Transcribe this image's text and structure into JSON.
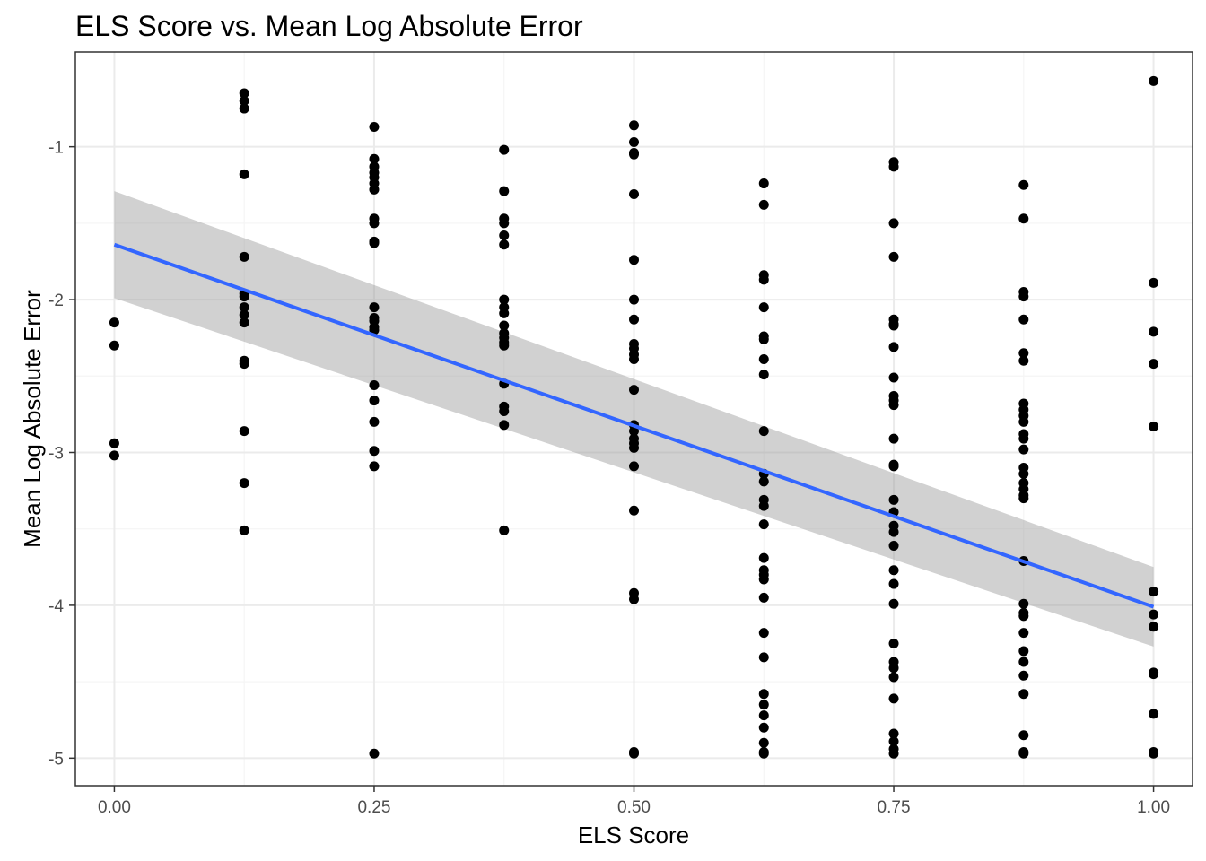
{
  "chart_data": {
    "type": "scatter",
    "title": "ELS Score vs. Mean Log Absolute Error",
    "xlabel": "ELS Score",
    "ylabel": "Mean Log Absolute Error",
    "xlim": [
      -0.0375,
      1.0375
    ],
    "ylim": [
      -5.18,
      -0.38
    ],
    "x_ticks": [
      0,
      0.25,
      0.5,
      0.75,
      1
    ],
    "x_tick_labels": [
      "0.00",
      "0.25",
      "0.50",
      "0.75",
      "1.00"
    ],
    "y_ticks": [
      -5,
      -4,
      -3,
      -2,
      -1
    ],
    "y_tick_labels": [
      "-5",
      "-4",
      "-3",
      "-2",
      "-1"
    ],
    "grid": true,
    "legend": "none",
    "colors": {
      "points": "#000000",
      "fit_line": "#3366ff",
      "ribbon": "#999999",
      "grid_major": "#ebebeb",
      "grid_minor": "#f5f5f5",
      "panel_border": "#333333"
    },
    "fit": {
      "method": "linear",
      "x": [
        0,
        1
      ],
      "y": [
        -1.64,
        -4.01
      ],
      "ci_lower": [
        -1.99,
        -4.27
      ],
      "ci_upper": [
        -1.29,
        -3.75
      ]
    },
    "points": [
      [
        0,
        -2.15
      ],
      [
        0,
        -2.3
      ],
      [
        0,
        -2.94
      ],
      [
        0,
        -3.02
      ],
      [
        0.125,
        -0.65
      ],
      [
        0.125,
        -0.7
      ],
      [
        0.125,
        -0.75
      ],
      [
        0.125,
        -1.18
      ],
      [
        0.125,
        -1.72
      ],
      [
        0.125,
        -1.96
      ],
      [
        0.125,
        -1.98
      ],
      [
        0.125,
        -2.05
      ],
      [
        0.125,
        -2.1
      ],
      [
        0.125,
        -2.15
      ],
      [
        0.125,
        -2.4
      ],
      [
        0.125,
        -2.42
      ],
      [
        0.125,
        -2.86
      ],
      [
        0.125,
        -3.2
      ],
      [
        0.125,
        -3.51
      ],
      [
        0.25,
        -0.87
      ],
      [
        0.25,
        -1.08
      ],
      [
        0.25,
        -1.13
      ],
      [
        0.25,
        -1.17
      ],
      [
        0.25,
        -1.2
      ],
      [
        0.25,
        -1.24
      ],
      [
        0.25,
        -1.28
      ],
      [
        0.25,
        -1.47
      ],
      [
        0.25,
        -1.5
      ],
      [
        0.25,
        -1.62
      ],
      [
        0.25,
        -1.63
      ],
      [
        0.25,
        -2.05
      ],
      [
        0.25,
        -2.12
      ],
      [
        0.25,
        -2.14
      ],
      [
        0.25,
        -2.18
      ],
      [
        0.25,
        -2.2
      ],
      [
        0.25,
        -2.56
      ],
      [
        0.25,
        -2.66
      ],
      [
        0.25,
        -2.8
      ],
      [
        0.25,
        -2.99
      ],
      [
        0.25,
        -3.09
      ],
      [
        0.25,
        -4.97
      ],
      [
        0.375,
        -1.02
      ],
      [
        0.375,
        -1.29
      ],
      [
        0.375,
        -1.47
      ],
      [
        0.375,
        -1.5
      ],
      [
        0.375,
        -1.58
      ],
      [
        0.375,
        -1.64
      ],
      [
        0.375,
        -2.0
      ],
      [
        0.375,
        -2.05
      ],
      [
        0.375,
        -2.09
      ],
      [
        0.375,
        -2.17
      ],
      [
        0.375,
        -2.22
      ],
      [
        0.375,
        -2.25
      ],
      [
        0.375,
        -2.28
      ],
      [
        0.375,
        -2.3
      ],
      [
        0.375,
        -2.55
      ],
      [
        0.375,
        -2.7
      ],
      [
        0.375,
        -2.73
      ],
      [
        0.375,
        -2.82
      ],
      [
        0.375,
        -3.51
      ],
      [
        0.5,
        -0.86
      ],
      [
        0.5,
        -0.97
      ],
      [
        0.5,
        -1.04
      ],
      [
        0.5,
        -1.05
      ],
      [
        0.5,
        -1.31
      ],
      [
        0.5,
        -1.74
      ],
      [
        0.5,
        -2.0
      ],
      [
        0.5,
        -2.13
      ],
      [
        0.5,
        -2.29
      ],
      [
        0.5,
        -2.32
      ],
      [
        0.5,
        -2.36
      ],
      [
        0.5,
        -2.39
      ],
      [
        0.5,
        -2.59
      ],
      [
        0.5,
        -2.82
      ],
      [
        0.5,
        -2.86
      ],
      [
        0.5,
        -2.91
      ],
      [
        0.5,
        -2.94
      ],
      [
        0.5,
        -2.97
      ],
      [
        0.5,
        -3.09
      ],
      [
        0.5,
        -3.38
      ],
      [
        0.5,
        -3.92
      ],
      [
        0.5,
        -3.96
      ],
      [
        0.5,
        -4.96
      ],
      [
        0.5,
        -4.97
      ],
      [
        0.625,
        -1.24
      ],
      [
        0.625,
        -1.38
      ],
      [
        0.625,
        -1.84
      ],
      [
        0.625,
        -1.87
      ],
      [
        0.625,
        -2.05
      ],
      [
        0.625,
        -2.24
      ],
      [
        0.625,
        -2.26
      ],
      [
        0.625,
        -2.39
      ],
      [
        0.625,
        -2.49
      ],
      [
        0.625,
        -2.86
      ],
      [
        0.625,
        -3.14
      ],
      [
        0.625,
        -3.19
      ],
      [
        0.625,
        -3.31
      ],
      [
        0.625,
        -3.35
      ],
      [
        0.625,
        -3.47
      ],
      [
        0.625,
        -3.69
      ],
      [
        0.625,
        -3.77
      ],
      [
        0.625,
        -3.8
      ],
      [
        0.625,
        -3.83
      ],
      [
        0.625,
        -3.95
      ],
      [
        0.625,
        -4.18
      ],
      [
        0.625,
        -4.34
      ],
      [
        0.625,
        -4.58
      ],
      [
        0.625,
        -4.65
      ],
      [
        0.625,
        -4.72
      ],
      [
        0.625,
        -4.8
      ],
      [
        0.625,
        -4.9
      ],
      [
        0.625,
        -4.96
      ],
      [
        0.625,
        -4.97
      ],
      [
        0.75,
        -1.1
      ],
      [
        0.75,
        -1.13
      ],
      [
        0.75,
        -1.5
      ],
      [
        0.75,
        -1.72
      ],
      [
        0.75,
        -2.13
      ],
      [
        0.75,
        -2.16
      ],
      [
        0.75,
        -2.17
      ],
      [
        0.75,
        -2.31
      ],
      [
        0.75,
        -2.51
      ],
      [
        0.75,
        -2.63
      ],
      [
        0.75,
        -2.66
      ],
      [
        0.75,
        -2.69
      ],
      [
        0.75,
        -2.91
      ],
      [
        0.75,
        -3.08
      ],
      [
        0.75,
        -3.09
      ],
      [
        0.75,
        -3.31
      ],
      [
        0.75,
        -3.39
      ],
      [
        0.75,
        -3.48
      ],
      [
        0.75,
        -3.52
      ],
      [
        0.75,
        -3.61
      ],
      [
        0.75,
        -3.77
      ],
      [
        0.75,
        -3.86
      ],
      [
        0.75,
        -3.99
      ],
      [
        0.75,
        -4.25
      ],
      [
        0.75,
        -4.37
      ],
      [
        0.75,
        -4.41
      ],
      [
        0.75,
        -4.47
      ],
      [
        0.75,
        -4.61
      ],
      [
        0.75,
        -4.84
      ],
      [
        0.75,
        -4.89
      ],
      [
        0.75,
        -4.94
      ],
      [
        0.75,
        -4.97
      ],
      [
        0.875,
        -1.25
      ],
      [
        0.875,
        -1.47
      ],
      [
        0.875,
        -1.95
      ],
      [
        0.875,
        -1.98
      ],
      [
        0.875,
        -2.13
      ],
      [
        0.875,
        -2.35
      ],
      [
        0.875,
        -2.4
      ],
      [
        0.875,
        -2.68
      ],
      [
        0.875,
        -2.72
      ],
      [
        0.875,
        -2.76
      ],
      [
        0.875,
        -2.8
      ],
      [
        0.875,
        -2.88
      ],
      [
        0.875,
        -2.91
      ],
      [
        0.875,
        -2.98
      ],
      [
        0.875,
        -3.1
      ],
      [
        0.875,
        -3.14
      ],
      [
        0.875,
        -3.2
      ],
      [
        0.875,
        -3.24
      ],
      [
        0.875,
        -3.28
      ],
      [
        0.875,
        -3.3
      ],
      [
        0.875,
        -3.71
      ],
      [
        0.875,
        -3.99
      ],
      [
        0.875,
        -4.05
      ],
      [
        0.875,
        -4.07
      ],
      [
        0.875,
        -4.18
      ],
      [
        0.875,
        -4.3
      ],
      [
        0.875,
        -4.37
      ],
      [
        0.875,
        -4.46
      ],
      [
        0.875,
        -4.58
      ],
      [
        0.875,
        -4.85
      ],
      [
        0.875,
        -4.96
      ],
      [
        0.875,
        -4.97
      ],
      [
        1,
        -0.57
      ],
      [
        1,
        -1.89
      ],
      [
        1,
        -2.21
      ],
      [
        1,
        -2.42
      ],
      [
        1,
        -2.83
      ],
      [
        1,
        -3.91
      ],
      [
        1,
        -4.06
      ],
      [
        1,
        -4.14
      ],
      [
        1,
        -4.44
      ],
      [
        1,
        -4.45
      ],
      [
        1,
        -4.71
      ],
      [
        1,
        -4.96
      ],
      [
        1,
        -4.97
      ]
    ]
  }
}
